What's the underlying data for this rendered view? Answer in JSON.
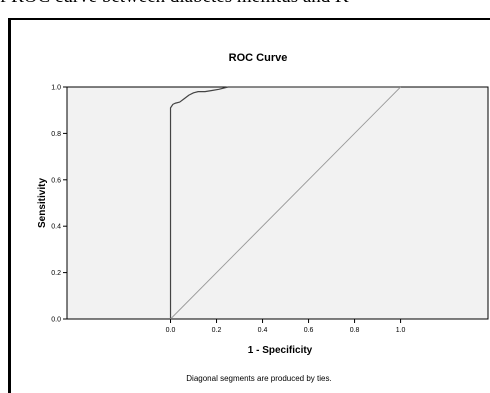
{
  "caption_top": "f ROC curve between diabetes mellitus and K",
  "chart_data": {
    "type": "line",
    "title": "ROC Curve",
    "xlabel": "1 - Specificity",
    "ylabel": "Sensitivity",
    "footnote": "Diagonal segments are produced by ties.",
    "xlim": [
      -0.45,
      1.38
    ],
    "ylim": [
      0,
      1
    ],
    "x_ticks": [
      "0.0",
      "0.2",
      "0.4",
      "0.6",
      "0.8",
      "1.0"
    ],
    "y_ticks": [
      "0.0",
      "0.2",
      "0.4",
      "0.6",
      "0.8",
      "1.0"
    ],
    "grid": false,
    "plot_background": "#f2f2f2",
    "series": [
      {
        "x": [
          0,
          0,
          0.01,
          0.02,
          0.04,
          0.06,
          0.08,
          0.1,
          0.12,
          0.15,
          0.18,
          0.21,
          0.25,
          1.0
        ],
        "y": [
          0,
          0.91,
          0.925,
          0.93,
          0.935,
          0.95,
          0.965,
          0.975,
          0.98,
          0.98,
          0.985,
          0.99,
          1.0,
          1.0
        ]
      },
      {
        "x": [
          0,
          1
        ],
        "y": [
          0,
          1
        ]
      }
    ]
  }
}
